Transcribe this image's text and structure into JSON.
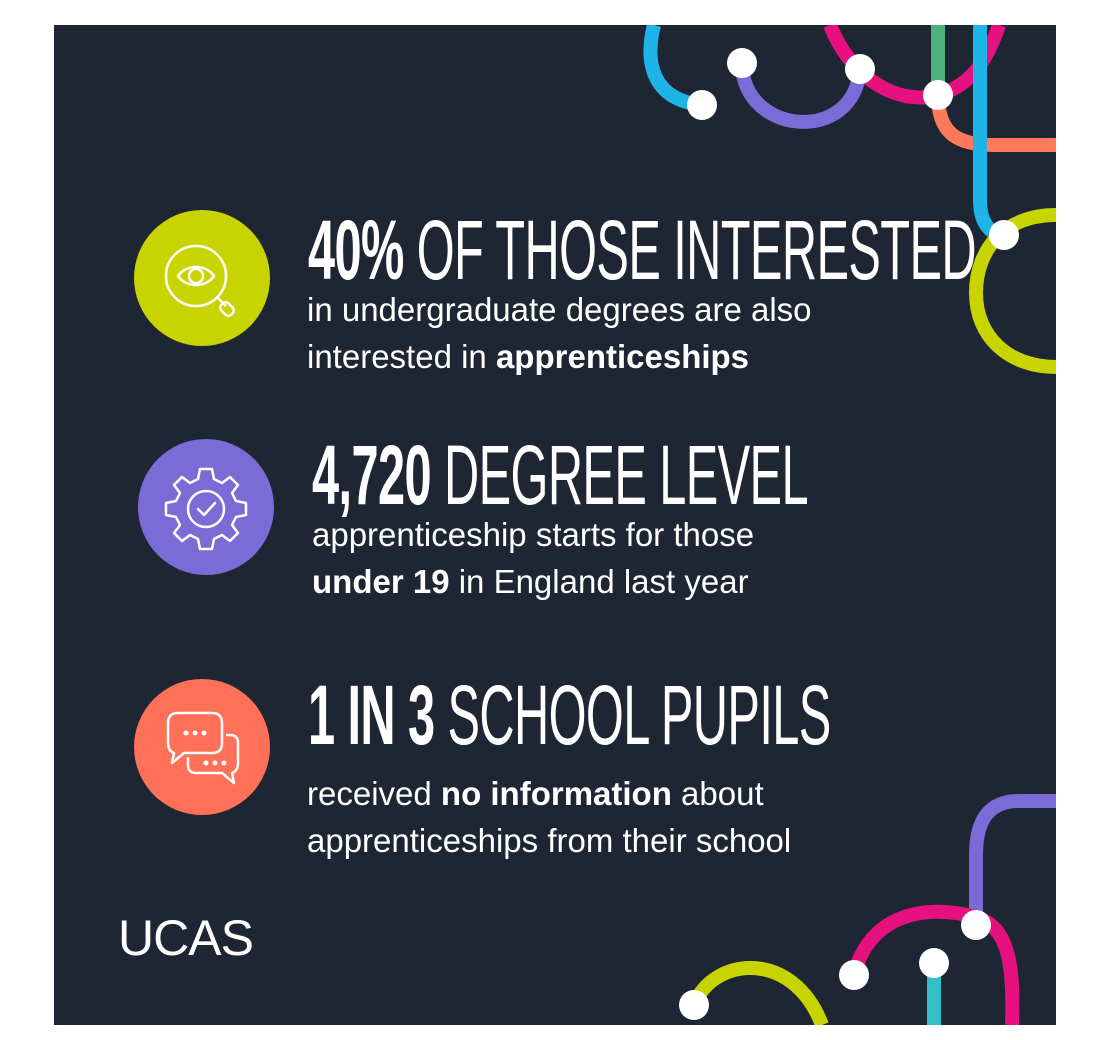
{
  "colors": {
    "background": "#1f2633",
    "lime": "#c8d400",
    "purple": "#7b6bd6",
    "coral": "#ff7058",
    "pink": "#e6117e",
    "blue": "#1fb4e8",
    "teal": "#35bfc4",
    "green": "#4fb27c",
    "orange": "#ff7a5c"
  },
  "stats": [
    {
      "icon": "eye-magnifier-icon",
      "headline_strong": "40%",
      "headline_light": "OF THOSE INTERESTED",
      "line1": "in undergraduate degrees are also",
      "line2_plain": "interested in ",
      "line2_bold": "apprenticeships"
    },
    {
      "icon": "gear-check-icon",
      "headline_strong": "4,720",
      "headline_light": "DEGREE LEVEL",
      "line1": "apprenticeship starts for those",
      "line2_bold": "under 19",
      "line2_plain": " in England last year"
    },
    {
      "icon": "speech-bubbles-icon",
      "headline_strong": "1 IN 3",
      "headline_light": "SCHOOL PUPILS",
      "line1_plain_a": "received ",
      "line1_bold": "no information",
      "line1_plain_b": " about",
      "line2": "apprenticeships from their school"
    }
  ],
  "logo": "UCAS"
}
